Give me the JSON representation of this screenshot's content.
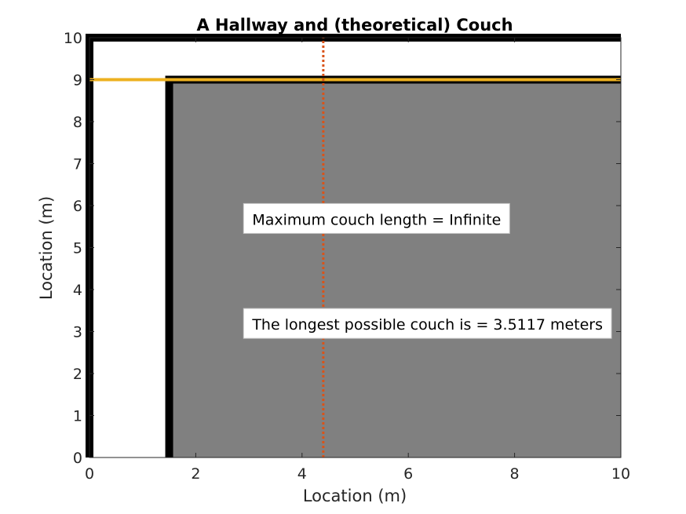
{
  "chart_data": {
    "type": "line",
    "title": "A Hallway and (theoretical) Couch",
    "xlabel": "Location (m)",
    "ylabel": "Location (m)",
    "xlim": [
      0,
      10
    ],
    "ylim": [
      0,
      10
    ],
    "xticks": [
      0,
      2,
      4,
      6,
      8,
      10
    ],
    "yticks": [
      0,
      1,
      2,
      3,
      4,
      5,
      6,
      7,
      8,
      9,
      10
    ],
    "grid": false,
    "colors": {
      "wall": "#000000",
      "region": "#808080",
      "couch": "#EDB120",
      "guide": "#D95319"
    },
    "walls": [
      {
        "x": [
          0,
          0,
          10
        ],
        "y": [
          0,
          10,
          10
        ]
      },
      {
        "x": [
          1.5,
          1.5,
          10
        ],
        "y": [
          0,
          9,
          9
        ]
      }
    ],
    "region": {
      "x": [
        1.5,
        10,
        10,
        1.5
      ],
      "y": [
        0,
        0,
        9,
        9
      ]
    },
    "couch_line": {
      "x": [
        0,
        10
      ],
      "y": [
        9,
        9
      ]
    },
    "guide_line": {
      "x": [
        4.4,
        4.4
      ],
      "y": [
        0,
        10
      ]
    },
    "annotations": [
      {
        "text": "Maximum couch length = Infinite",
        "x": 2.9,
        "y": 5.6
      },
      {
        "text": "The longest possible couch is = 3.5117 meters",
        "x": 2.9,
        "y": 3.1
      }
    ]
  }
}
